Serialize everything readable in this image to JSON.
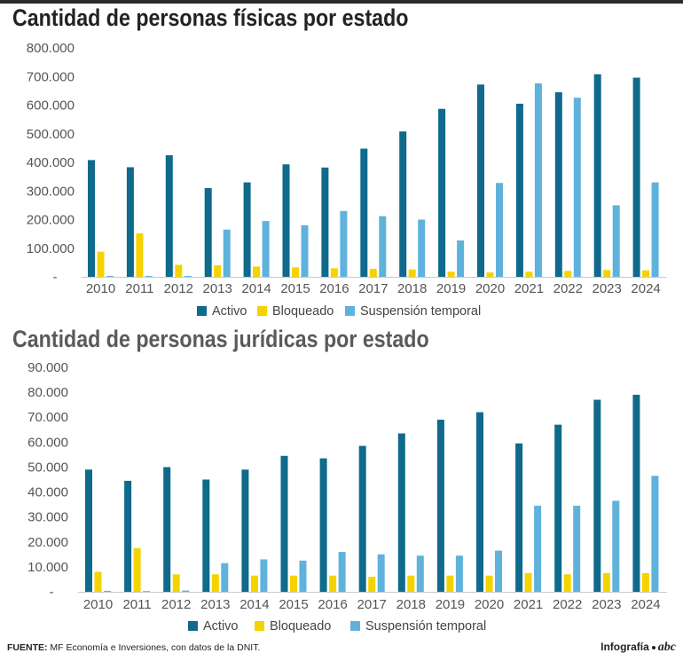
{
  "chart_data": [
    {
      "type": "bar",
      "title": "Cantidad de personas físicas por estado",
      "categories": [
        "2010",
        "2011",
        "2012",
        "2013",
        "2014",
        "2015",
        "2016",
        "2017",
        "2018",
        "2019",
        "2020",
        "2021",
        "2022",
        "2023",
        "2024"
      ],
      "series": [
        {
          "name": "Activo",
          "color": "#0f6a8b",
          "values": [
            408000,
            383000,
            425000,
            310000,
            330000,
            393000,
            382000,
            448000,
            508000,
            587000,
            672000,
            605000,
            645000,
            708000,
            696000
          ]
        },
        {
          "name": "Bloqueado",
          "color": "#f5d300",
          "values": [
            88000,
            152000,
            42000,
            40000,
            36000,
            33000,
            30000,
            28000,
            26000,
            18000,
            15000,
            18000,
            21000,
            24000,
            23000
          ]
        },
        {
          "name": "Suspensión temporal",
          "color": "#5fb2dc",
          "values": [
            3000,
            3000,
            3000,
            165000,
            195000,
            180000,
            230000,
            212000,
            200000,
            127000,
            328000,
            676000,
            626000,
            250000,
            330000
          ]
        }
      ],
      "yticks": [
        "800.000",
        "700.000",
        "600.000",
        "500.000",
        "400.000",
        "300.000",
        "200.000",
        "100.000",
        "-"
      ],
      "ylim": [
        0,
        800000
      ],
      "legend": "bottom"
    },
    {
      "type": "bar",
      "title": "Cantidad de personas jurídicas por estado",
      "categories": [
        "2010",
        "2011",
        "2012",
        "2013",
        "2014",
        "2015",
        "2016",
        "2017",
        "2018",
        "2019",
        "2020",
        "2021",
        "2022",
        "2023",
        "2024"
      ],
      "series": [
        {
          "name": "Activo",
          "color": "#0f6a8b",
          "values": [
            49000,
            44500,
            50000,
            45000,
            49000,
            54500,
            53500,
            58500,
            63500,
            69000,
            72000,
            59500,
            67000,
            77000,
            79000
          ]
        },
        {
          "name": "Bloqueado",
          "color": "#f5d300",
          "values": [
            8000,
            17500,
            7000,
            7000,
            6500,
            6500,
            6500,
            6000,
            6500,
            6500,
            6500,
            7500,
            7000,
            7500,
            7500
          ]
        },
        {
          "name": "Suspensión temporal",
          "color": "#5fb2dc",
          "values": [
            400,
            300,
            500,
            11500,
            13000,
            12500,
            16000,
            15000,
            14500,
            14500,
            16500,
            34500,
            34500,
            36500,
            46500
          ]
        }
      ],
      "yticks": [
        "90.000",
        "80.000",
        "70.000",
        "60.000",
        "50.000",
        "40.000",
        "30.000",
        "20.000",
        "10.000",
        "-"
      ],
      "ylim": [
        0,
        90000
      ],
      "legend": "bottom"
    }
  ],
  "source": {
    "label": "FUENTE:",
    "text": " MF Economía e Inversiones, con datos de la DNIT."
  },
  "brand": {
    "label": "Infografía",
    "logo": "abc"
  }
}
